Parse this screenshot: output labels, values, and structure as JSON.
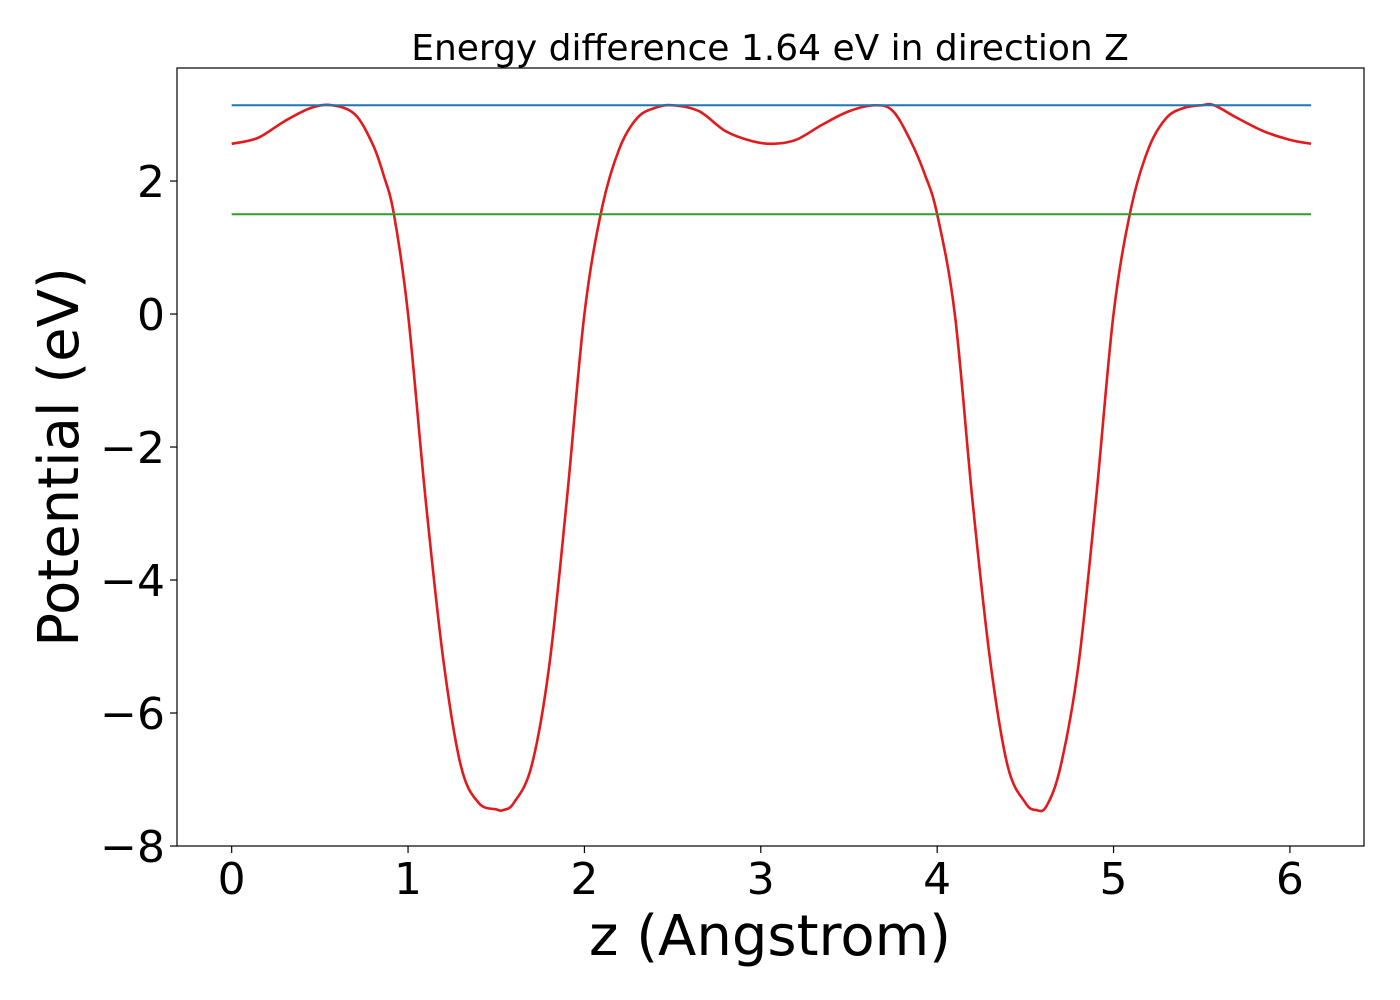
{
  "chart_data": {
    "type": "line",
    "title": "Energy difference 1.64 eV in direction Z",
    "xlabel": "z (Angstrom)",
    "ylabel": "Potential (eV)",
    "xlim": [
      -0.31,
      6.42
    ],
    "ylim": [
      -8.0,
      3.7
    ],
    "xticks": [
      0,
      1,
      2,
      3,
      4,
      5,
      6
    ],
    "yticks": [
      -8,
      -6,
      -4,
      -2,
      0,
      2
    ],
    "xtick_labels": [
      "0",
      "1",
      "2",
      "3",
      "4",
      "5",
      "6"
    ],
    "ytick_labels": [
      "−8",
      "−6",
      "−4",
      "−2",
      "0",
      "2"
    ],
    "grid": false,
    "legend": "none",
    "series": [
      {
        "color": "#e31a1c",
        "x": [
          0.0,
          0.15,
          0.3,
          0.45,
          0.57,
          0.7,
          0.8,
          0.86,
          0.92,
          1.0,
          1.1,
          1.2,
          1.3,
          1.4,
          1.5,
          1.54,
          1.6,
          1.7,
          1.8,
          1.9,
          2.0,
          2.1,
          2.2,
          2.3,
          2.4,
          2.5,
          2.65,
          2.8,
          2.95,
          3.07,
          3.2,
          3.35,
          3.5,
          3.65,
          3.75,
          3.85,
          3.93,
          4.0,
          4.1,
          4.2,
          4.3,
          4.4,
          4.5,
          4.56,
          4.62,
          4.7,
          4.8,
          4.9,
          5.0,
          5.1,
          5.2,
          5.3,
          5.4,
          5.5,
          5.57,
          5.7,
          5.85,
          6.0,
          6.12
        ],
        "y": [
          2.56,
          2.65,
          2.9,
          3.1,
          3.14,
          3.0,
          2.55,
          2.1,
          1.5,
          0.0,
          -2.8,
          -5.2,
          -6.8,
          -7.35,
          -7.45,
          -7.46,
          -7.35,
          -6.8,
          -5.3,
          -2.8,
          0.0,
          1.6,
          2.5,
          2.95,
          3.1,
          3.14,
          3.05,
          2.75,
          2.6,
          2.56,
          2.62,
          2.85,
          3.05,
          3.14,
          3.05,
          2.6,
          2.1,
          1.5,
          0.0,
          -2.8,
          -5.2,
          -6.8,
          -7.35,
          -7.46,
          -7.4,
          -6.8,
          -5.3,
          -2.8,
          0.0,
          1.6,
          2.5,
          2.95,
          3.1,
          3.14,
          3.14,
          2.95,
          2.75,
          2.62,
          2.56
        ]
      },
      {
        "color": "#1f77b4",
        "x": [
          0.0,
          6.12
        ],
        "y": [
          3.14,
          3.14
        ]
      },
      {
        "color": "#2ca02c",
        "x": [
          0.0,
          6.12
        ],
        "y": [
          1.5,
          1.5
        ]
      }
    ]
  }
}
